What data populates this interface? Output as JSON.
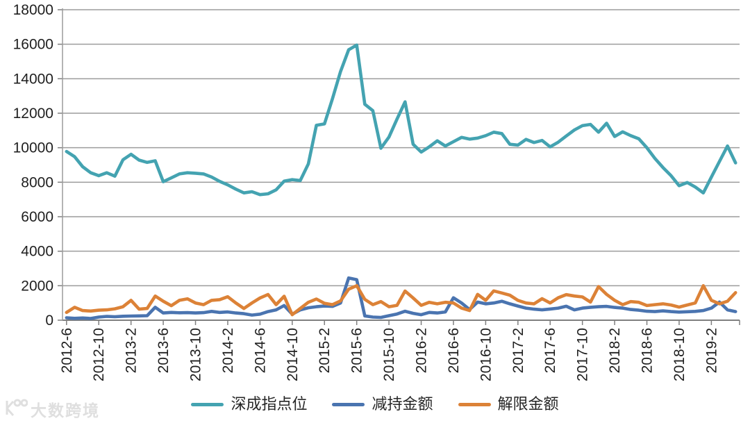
{
  "watermark": {
    "text": "大数跨境",
    "logo": "100"
  },
  "chart_data": {
    "type": "line",
    "title": "",
    "xlabel": "",
    "ylabel": "",
    "ylim": [
      0,
      18000
    ],
    "ytick_interval": 2000,
    "grid": "horizontal",
    "legend_position": "bottom",
    "colors": {
      "grid": "#9c9c9c",
      "axis": "#7f7f7f",
      "text": "#1f1f1f"
    },
    "y_tick_labels": [
      "0",
      "2000",
      "4000",
      "6000",
      "8000",
      "10000",
      "12000",
      "14000",
      "16000",
      "18000"
    ],
    "x_tick_labels": [
      "2012-6",
      "2012-10",
      "2013-2",
      "2013-6",
      "2013-10",
      "2014-2",
      "2014-6",
      "2014-10",
      "2015-2",
      "2015-6",
      "2015-10",
      "2016-2",
      "2016-6",
      "2016-10",
      "2017-2",
      "2017-6",
      "2017-10",
      "2018-2",
      "2018-6",
      "2018-10",
      "2019-2"
    ],
    "x": [
      "2012-6",
      "2012-7",
      "2012-8",
      "2012-9",
      "2012-10",
      "2012-11",
      "2012-12",
      "2013-1",
      "2013-2",
      "2013-3",
      "2013-4",
      "2013-5",
      "2013-6",
      "2013-7",
      "2013-8",
      "2013-9",
      "2013-10",
      "2013-11",
      "2013-12",
      "2014-1",
      "2014-2",
      "2014-3",
      "2014-4",
      "2014-5",
      "2014-6",
      "2014-7",
      "2014-8",
      "2014-9",
      "2014-10",
      "2014-11",
      "2014-12",
      "2015-1",
      "2015-2",
      "2015-3",
      "2015-4",
      "2015-5",
      "2015-6",
      "2015-7",
      "2015-8",
      "2015-9",
      "2015-10",
      "2015-11",
      "2015-12",
      "2016-1",
      "2016-2",
      "2016-3",
      "2016-4",
      "2016-5",
      "2016-6",
      "2016-7",
      "2016-8",
      "2016-9",
      "2016-10",
      "2016-11",
      "2016-12",
      "2017-1",
      "2017-2",
      "2017-3",
      "2017-4",
      "2017-5",
      "2017-6",
      "2017-7",
      "2017-8",
      "2017-9",
      "2017-10",
      "2017-11",
      "2017-12",
      "2018-1",
      "2018-2",
      "2018-3",
      "2018-4",
      "2018-5",
      "2018-6",
      "2018-7",
      "2018-8",
      "2018-9",
      "2018-10",
      "2018-11",
      "2018-12",
      "2019-1",
      "2019-2",
      "2019-3",
      "2019-4",
      "2019-5"
    ],
    "series": [
      {
        "name": "深成指点位",
        "color": "#44a3b1",
        "values": [
          9780,
          9480,
          8900,
          8550,
          8380,
          8550,
          8350,
          9300,
          9620,
          9280,
          9150,
          9240,
          8030,
          8250,
          8480,
          8550,
          8520,
          8480,
          8300,
          8050,
          7850,
          7600,
          7380,
          7450,
          7280,
          7330,
          7560,
          8060,
          8150,
          8100,
          9060,
          11300,
          11380,
          12850,
          14420,
          15680,
          15950,
          12520,
          12150,
          9970,
          10620,
          11660,
          12660,
          10200,
          9750,
          10050,
          10400,
          10100,
          10350,
          10600,
          10500,
          10560,
          10700,
          10900,
          10820,
          10200,
          10150,
          10480,
          10300,
          10420,
          10050,
          10320,
          10680,
          11030,
          11280,
          11350,
          10900,
          11420,
          10650,
          10920,
          10700,
          10520,
          10000,
          9380,
          8850,
          8380,
          7800,
          7980,
          7720,
          7380,
          8300,
          9200,
          10100,
          9120
        ]
      },
      {
        "name": "减持金额",
        "color": "#4a74b0",
        "values": [
          140,
          110,
          130,
          100,
          180,
          220,
          200,
          230,
          240,
          250,
          260,
          750,
          420,
          450,
          430,
          440,
          420,
          440,
          510,
          450,
          480,
          420,
          380,
          300,
          350,
          500,
          600,
          850,
          350,
          600,
          720,
          780,
          820,
          800,
          1000,
          2450,
          2350,
          250,
          180,
          160,
          260,
          360,
          520,
          400,
          320,
          450,
          420,
          480,
          1300,
          1000,
          620,
          1050,
          950,
          1000,
          1100,
          950,
          820,
          700,
          640,
          600,
          650,
          700,
          810,
          600,
          700,
          750,
          780,
          800,
          740,
          700,
          620,
          580,
          520,
          500,
          540,
          500,
          470,
          490,
          510,
          560,
          700,
          1050,
          600,
          500
        ]
      },
      {
        "name": "解限金额",
        "color": "#dc8237",
        "values": [
          450,
          750,
          560,
          530,
          580,
          600,
          660,
          780,
          1150,
          640,
          680,
          1400,
          1100,
          840,
          1150,
          1240,
          1000,
          900,
          1150,
          1190,
          1360,
          1000,
          680,
          1000,
          1290,
          1490,
          900,
          1390,
          320,
          680,
          1040,
          1230,
          980,
          900,
          1120,
          1800,
          2000,
          1210,
          900,
          1080,
          780,
          860,
          1690,
          1290,
          860,
          1040,
          950,
          1040,
          1000,
          700,
          560,
          1500,
          1150,
          1700,
          1580,
          1450,
          1150,
          1000,
          950,
          1250,
          1000,
          1300,
          1480,
          1400,
          1350,
          1050,
          1950,
          1500,
          1150,
          900,
          1080,
          1040,
          850,
          900,
          950,
          880,
          760,
          880,
          1000,
          2000,
          1150,
          950,
          1100,
          1600
        ]
      }
    ]
  }
}
